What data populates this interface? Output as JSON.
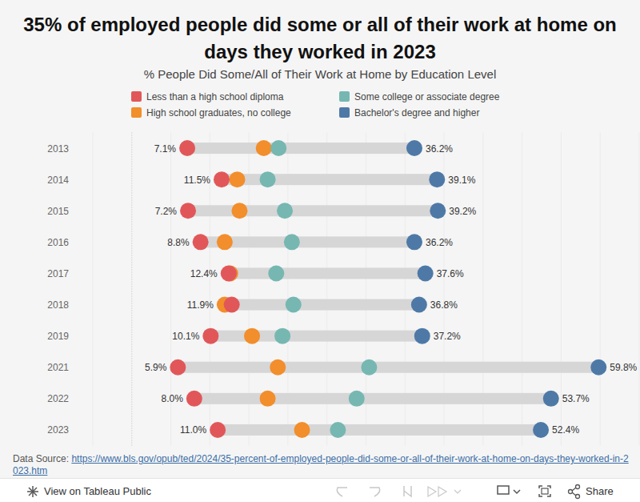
{
  "chart_data": {
    "type": "dumbbell",
    "title": "35% of employed people did some or all of their work at home on days they worked in 2023",
    "subtitle": "% People Did Some/All of Their Work at Home by Education Level",
    "orientation": "horizontal",
    "categories": [
      "2013",
      "2014",
      "2015",
      "2016",
      "2017",
      "2018",
      "2019",
      "2021",
      "2022",
      "2023"
    ],
    "series": [
      {
        "name": "Less than a high school diploma",
        "color": "#e15759",
        "values": [
          7.1,
          11.5,
          7.2,
          8.8,
          12.4,
          12.8,
          10.1,
          5.9,
          8.0,
          11.0
        ],
        "value_labels": [
          "7.1%",
          "11.5%",
          "7.2%",
          "8.8%",
          "12.4%",
          null,
          "10.1%",
          "5.9%",
          "8.0%",
          "11.0%"
        ]
      },
      {
        "name": "High school graduates, no college",
        "color": "#f28e2b",
        "values": [
          16.9,
          13.5,
          13.8,
          11.9,
          12.6,
          11.9,
          15.4,
          18.7,
          17.4,
          21.8
        ],
        "value_labels": [
          null,
          null,
          null,
          null,
          null,
          "11.9%",
          null,
          null,
          null,
          null
        ]
      },
      {
        "name": "Some college or associate degree",
        "color": "#76b7b2",
        "values": [
          18.8,
          17.4,
          19.6,
          20.5,
          18.5,
          20.7,
          19.3,
          30.4,
          28.8,
          26.4
        ]
      },
      {
        "name": "Bachelor's degree and higher",
        "color": "#4e79a7",
        "values": [
          36.2,
          39.1,
          39.2,
          36.2,
          37.6,
          36.8,
          37.2,
          59.8,
          53.7,
          52.4
        ],
        "value_labels": [
          "36.2%",
          "39.1%",
          "39.2%",
          "36.2%",
          "37.6%",
          "36.8%",
          "37.2%",
          "59.8%",
          "53.7%",
          "52.4%"
        ]
      }
    ],
    "xlim": [
      -5,
      65
    ],
    "xticks": [
      -5,
      0,
      5,
      10,
      15,
      20,
      25,
      30,
      35,
      40,
      45,
      50,
      55,
      60,
      65
    ],
    "grid": true,
    "tick_labels": "y",
    "data_labels": true,
    "legend": "top"
  },
  "source": {
    "label": "Data Source:",
    "url": "https://www.bls.gov/opub/ted/2024/35-percent-of-employed-people-did-some-or-all-of-their-work-at-home-on-days-they-worked-in-2023.htm"
  },
  "toolbar": {
    "view_label": "View on Tableau Public",
    "share_label": "Share"
  }
}
